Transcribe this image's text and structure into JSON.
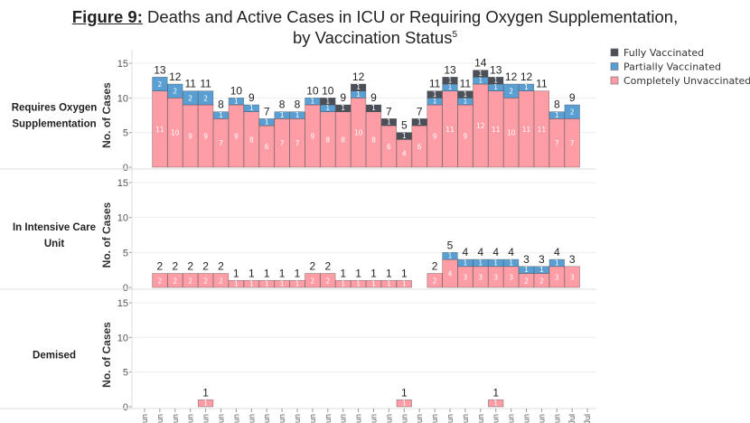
{
  "title": {
    "prefix": "Figure 9:",
    "line1": "Deaths and Active Cases in ICU or Requiring Oxygen Supplementation,",
    "line2": "by Vaccination Status",
    "footnote": "5"
  },
  "chart_data": {
    "type": "bar",
    "stacked": true,
    "ylabel": "No. of Cases",
    "ylim": [
      0,
      16
    ],
    "yticks": [
      0,
      5,
      10,
      15
    ],
    "grid": true,
    "legend_placement": "top-right",
    "x_tick_labels": [
      "Jun",
      "Jun",
      "Jun",
      "Jun",
      "Jun",
      "Jun",
      "Jun",
      "Jun",
      "Jun",
      "Jun",
      "Jun",
      "Jun",
      "Jun",
      "Jun",
      "Jun",
      "Jun",
      "Jun",
      "Jun",
      "Jun",
      "Jun",
      "Jun",
      "Jun",
      "Jun",
      "Jun",
      "Jun",
      "Jun",
      "Jun",
      "Jun",
      "Jul",
      "Jul"
    ],
    "legend": [
      {
        "name": "Fully Vaccinated",
        "color": "#4b5058"
      },
      {
        "name": "Partially Vaccinated",
        "color": "#5a9fd4"
      },
      {
        "name": "Completely Unvaccinated",
        "color": "#ff9da7"
      }
    ],
    "panels": [
      {
        "label": [
          "Requires Oxygen",
          "Supplementation"
        ],
        "unvaccinated": [
          null,
          11,
          10,
          9,
          9,
          7,
          9,
          8,
          6,
          7,
          7,
          9,
          8,
          8,
          10,
          8,
          6,
          4,
          6,
          9,
          11,
          9,
          12,
          11,
          10,
          11,
          11,
          7,
          7,
          null
        ],
        "partially": [
          null,
          2,
          2,
          2,
          2,
          1,
          1,
          1,
          1,
          1,
          1,
          1,
          1,
          0,
          1,
          0,
          0,
          0,
          0,
          1,
          1,
          1,
          1,
          1,
          2,
          1,
          0,
          1,
          2,
          null
        ],
        "fully": [
          null,
          0,
          0,
          0,
          0,
          0,
          0,
          0,
          0,
          0,
          0,
          0,
          1,
          1,
          1,
          1,
          1,
          1,
          1,
          1,
          1,
          1,
          1,
          1,
          0,
          0,
          0,
          0,
          0,
          null
        ]
      },
      {
        "label": [
          "In Intensive Care",
          "Unit"
        ],
        "unvaccinated": [
          null,
          2,
          2,
          2,
          2,
          2,
          1,
          1,
          1,
          1,
          1,
          2,
          2,
          1,
          1,
          1,
          1,
          1,
          0,
          2,
          4,
          3,
          3,
          3,
          3,
          2,
          2,
          3,
          3,
          null
        ],
        "partially": [
          null,
          0,
          0,
          0,
          0,
          0,
          0,
          0,
          0,
          0,
          0,
          0,
          0,
          0,
          0,
          0,
          0,
          0,
          0,
          0,
          1,
          1,
          1,
          1,
          1,
          1,
          1,
          1,
          0,
          null
        ],
        "fully": [
          null,
          0,
          0,
          0,
          0,
          0,
          0,
          0,
          0,
          0,
          0,
          0,
          0,
          0,
          0,
          0,
          0,
          0,
          0,
          0,
          0,
          0,
          0,
          0,
          0,
          0,
          0,
          0,
          0,
          null
        ]
      },
      {
        "label": [
          "Demised"
        ],
        "unvaccinated": [
          null,
          0,
          0,
          0,
          1,
          0,
          0,
          0,
          0,
          0,
          0,
          0,
          0,
          0,
          0,
          0,
          0,
          1,
          0,
          0,
          0,
          0,
          0,
          1,
          0,
          0,
          0,
          0,
          0,
          null
        ],
        "partially": [
          null,
          0,
          0,
          0,
          0,
          0,
          0,
          0,
          0,
          0,
          0,
          0,
          0,
          0,
          0,
          0,
          0,
          0,
          0,
          0,
          0,
          0,
          0,
          0,
          0,
          0,
          0,
          0,
          0,
          null
        ],
        "fully": [
          null,
          0,
          0,
          0,
          0,
          0,
          0,
          0,
          0,
          0,
          0,
          0,
          0,
          0,
          0,
          0,
          0,
          0,
          0,
          0,
          0,
          0,
          0,
          0,
          0,
          0,
          0,
          0,
          0,
          null
        ]
      }
    ]
  }
}
